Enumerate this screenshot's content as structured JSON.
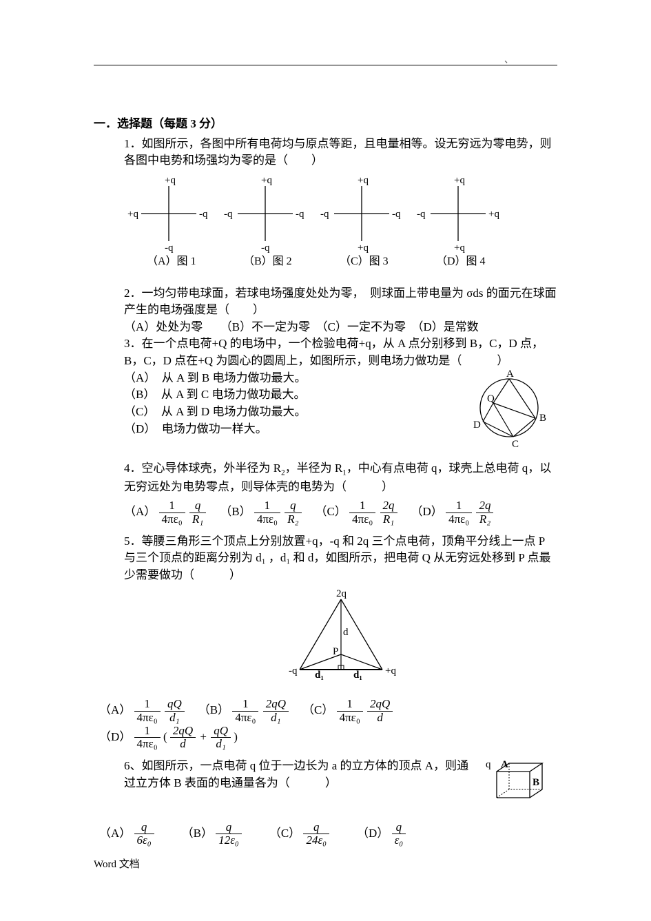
{
  "tick_mark": "、",
  "section_title": "一．选择题（每题 3 分）",
  "q1": {
    "text": "1．如图所示，各图中所有电荷均与原点等距，且电量相等。设无穷远为零电势，则各图中电势和场强均为零的是（　　）",
    "figs": [
      {
        "top": "+q",
        "left": "+q",
        "right": "-q",
        "bottom": "-q",
        "caption": "（A）图 1"
      },
      {
        "top": "+q",
        "left": "-q",
        "right": "-q",
        "bottom": "-q",
        "caption": "（B）图 2"
      },
      {
        "top": "+q",
        "left": "-q",
        "right": "-q",
        "bottom": "+q",
        "caption": "（C）图 3"
      },
      {
        "top": "+q",
        "left": "-q",
        "right": "+q",
        "bottom": "+q",
        "caption": "（D）图 4"
      }
    ]
  },
  "q2": {
    "text": "2．一均匀带电球面，若球电场强度处处为零，　则球面上带电量为 σds 的面元在球面产生的电场强度是（　　）",
    "opts": "（A）处处为零　　（B）不一定为零　（C）一定不为零　（D）是常数"
  },
  "q3": {
    "text": "3．在一个点电荷+Q 的电场中，一个检验电荷+q，从 A 点分别移到 B，C，D 点，B，C，D 点在+Q 为圆心的圆周上，如图所示，则电场力做功是（　　　）",
    "optA": "（A）　从 A 到 B 电场力做功最大。",
    "optB": "（B）　从 A 到 C 电场力做功最大。",
    "optC": "（C）　从 A 到 D 电场力做功最大。",
    "optD": "（D）　电场力做功一样大。",
    "labels": {
      "A": "A",
      "B": "B",
      "C": "C",
      "D": "D",
      "Q": "Q"
    }
  },
  "q4": {
    "text1": "4．空心导体球壳，外半径为 R",
    "r2": "2",
    "text2": "，半径为 R",
    "r1": "1",
    "text3": "，中心有点电荷 q，球壳上总电荷 q，以无穷远处为电势零点，则导体壳的电势为（　　　）",
    "opts": {
      "A": {
        "pre": "（A）",
        "coef_num": "1",
        "coef_den": "4πε₀",
        "val_num": "q",
        "val_den": "R₁"
      },
      "B": {
        "pre": "（B）",
        "coef_num": "1",
        "coef_den": "4πε₀",
        "val_num": "q",
        "val_den": "R₂"
      },
      "C": {
        "pre": "（C）",
        "coef_num": "1",
        "coef_den": "4πε₀",
        "val_num": "2q",
        "val_den": "R₁"
      },
      "D": {
        "pre": "（D）",
        "coef_num": "1",
        "coef_den": "4πε₀",
        "val_num": "2q",
        "val_den": "R₂"
      }
    }
  },
  "q5": {
    "text": "5．等腰三角形三个顶点上分别放置+q，-q 和 2q 三个点电荷，顶角平分线上一点 P 与三个顶点的距离分别为 d₁ ，d₁ 和 d，如图所示，把电荷 Q 从无穷远处移到 P 点最少需要做功（　　　）",
    "fig": {
      "top": "2q",
      "left": "-q",
      "right": "+q",
      "d": "d",
      "d1l": "d₁",
      "d1r": "d₁",
      "P": "P"
    },
    "opts": {
      "A": {
        "pre": "（A）",
        "coef_num": "1",
        "coef_den": "4πε₀",
        "val_num": "qQ",
        "val_den": "d₁"
      },
      "B": {
        "pre": "（B）",
        "coef_num": "1",
        "coef_den": "4πε₀",
        "val_num": "2qQ",
        "val_den": "d₁"
      },
      "C": {
        "pre": "（C）",
        "coef_num": "1",
        "coef_den": "4πε₀",
        "val_num": "2qQ",
        "val_den": "d"
      },
      "D": {
        "pre": "（D）",
        "coef_num": "1",
        "coef_den": "4πε₀",
        "lp": "(",
        "t1_num": "2qQ",
        "t1_den": "d",
        "plus": "+",
        "t2_num": "qQ",
        "t2_den": "d₁",
        "rp": ")"
      }
    }
  },
  "q6": {
    "text": "6、如图所示，一点电荷 q 位于一边长为 a 的立方体的顶点 A，则通过立方体 B 表面的电通量各为（　　　）",
    "fig": {
      "q": "q",
      "A": "A",
      "B": "B"
    },
    "opts": {
      "A": {
        "pre": "（A）",
        "num": "q",
        "den": "6ε₀"
      },
      "B": {
        "pre": "（B）",
        "num": "q",
        "den": "12ε₀"
      },
      "C": {
        "pre": "（C）",
        "num": "q",
        "den": "24ε₀"
      },
      "D": {
        "pre": "（D）",
        "num": "q",
        "den": "ε₀"
      }
    }
  },
  "footer": "Word 文档"
}
